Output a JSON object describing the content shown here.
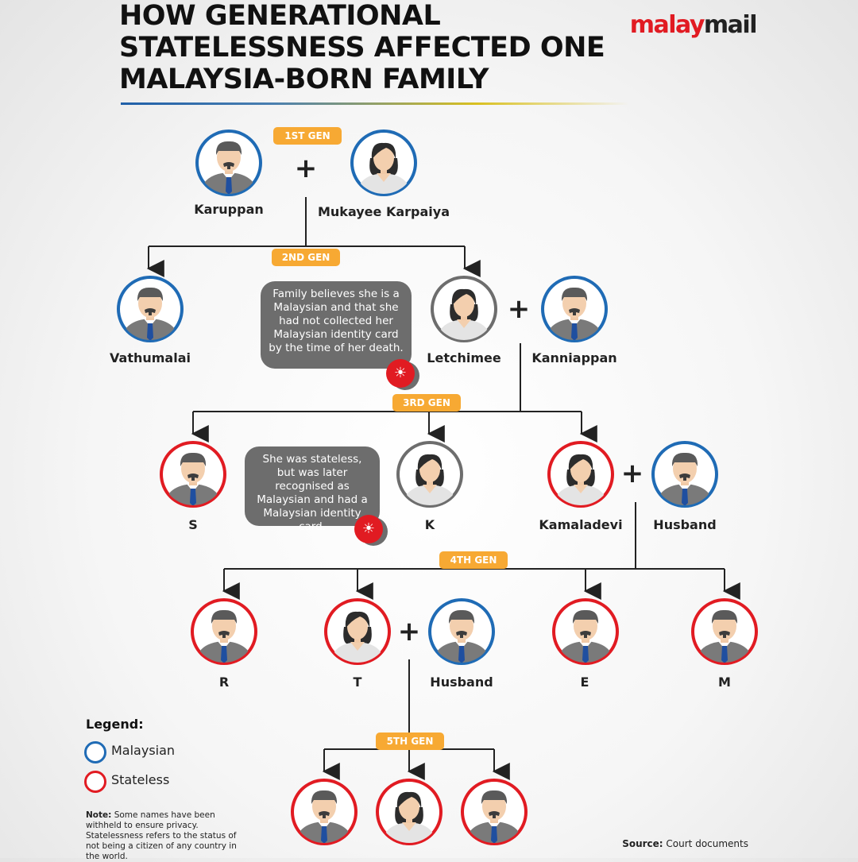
{
  "title": "HOW GENERATIONAL STATELESSNESS AFFECTED ONE MALAYSIA-BORN FAMILY",
  "logo": {
    "part1": "malay",
    "part2": "mail"
  },
  "colors": {
    "malaysian": "#1f6bb5",
    "stateless": "#e11b22",
    "unknown": "#6d6d6d",
    "badge": "#f7a933"
  },
  "generations": [
    "1ST GEN",
    "2ND GEN",
    "3RD GEN",
    "4TH GEN",
    "5TH GEN"
  ],
  "people": [
    {
      "id": "karuppan",
      "name": "Karuppan",
      "status": "malaysian",
      "gender": "male"
    },
    {
      "id": "mukayee",
      "name": "Mukayee Karpaiya",
      "status": "malaysian",
      "gender": "female"
    },
    {
      "id": "vathumalai",
      "name": "Vathumalai",
      "status": "malaysian",
      "gender": "male"
    },
    {
      "id": "letchimee",
      "name": "Letchimee",
      "status": "unknown",
      "gender": "female"
    },
    {
      "id": "kanniappan",
      "name": "Kanniappan",
      "status": "malaysian",
      "gender": "male"
    },
    {
      "id": "s",
      "name": "S",
      "status": "stateless",
      "gender": "male"
    },
    {
      "id": "k",
      "name": "K",
      "status": "unknown",
      "gender": "female"
    },
    {
      "id": "kamaladevi",
      "name": "Kamaladevi",
      "status": "stateless",
      "gender": "female"
    },
    {
      "id": "husband3",
      "name": "Husband",
      "status": "malaysian",
      "gender": "male"
    },
    {
      "id": "r",
      "name": "R",
      "status": "stateless",
      "gender": "male"
    },
    {
      "id": "t",
      "name": "T",
      "status": "stateless",
      "gender": "female"
    },
    {
      "id": "husband4",
      "name": "Husband",
      "status": "malaysian",
      "gender": "male"
    },
    {
      "id": "e",
      "name": "E",
      "status": "stateless",
      "gender": "male"
    },
    {
      "id": "m",
      "name": "M",
      "status": "stateless",
      "gender": "male"
    },
    {
      "id": "child1",
      "name": "",
      "status": "stateless",
      "gender": "male"
    },
    {
      "id": "child2",
      "name": "",
      "status": "stateless",
      "gender": "female"
    },
    {
      "id": "child3",
      "name": "",
      "status": "stateless",
      "gender": "male"
    }
  ],
  "notes": {
    "letchimee": "Family believes she is a Malaysian and that she had not collected her Malaysian identity card by the time of her death.",
    "k": "She was stateless, but was later recognised as Malaysian and had a Malaysian identity card."
  },
  "legend": {
    "title": "Legend:",
    "items": [
      {
        "label": "Malaysian",
        "status": "malaysian"
      },
      {
        "label": "Stateless",
        "status": "stateless"
      }
    ]
  },
  "footer": {
    "note_label": "Note:",
    "note_text": "Some names have been withheld to ensure privacy. Statelessness refers to the status of not being a citizen of any country in the world.",
    "source_label": "Source:",
    "source_text": "Court documents"
  }
}
